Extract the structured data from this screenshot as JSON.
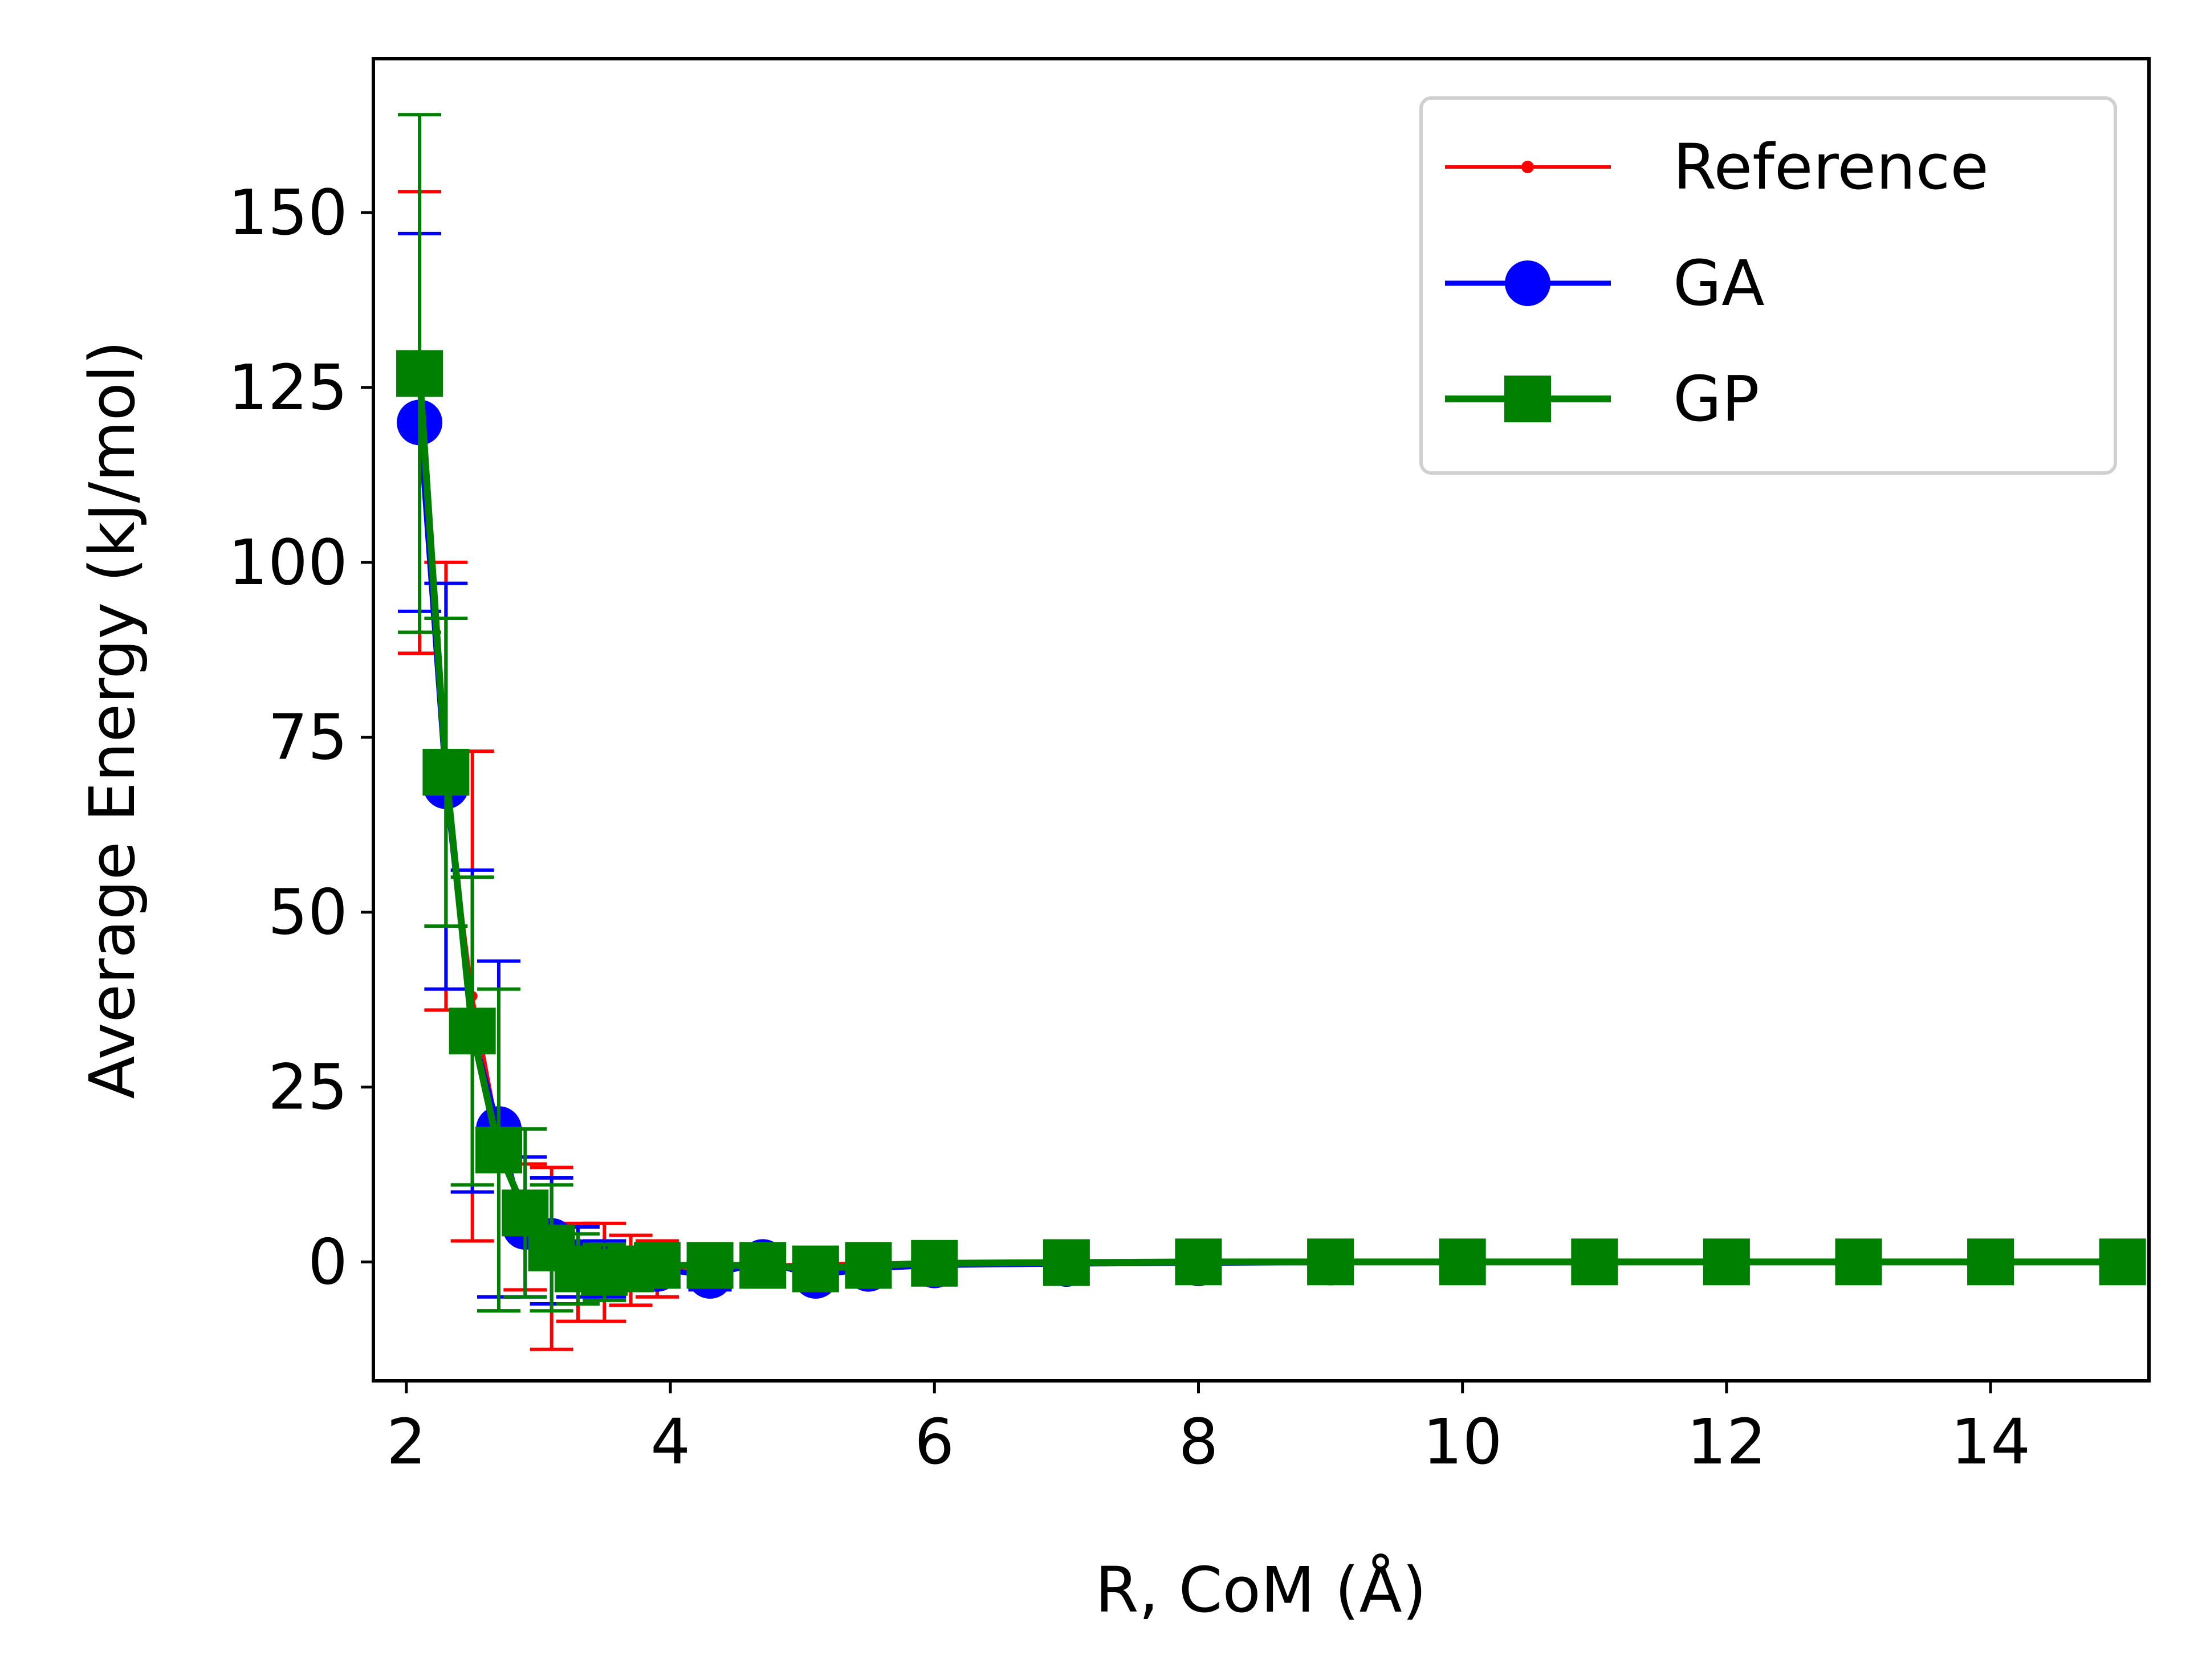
{
  "chart_data": {
    "type": "line",
    "xlabel": "R, CoM (Å)",
    "ylabel": "Average Energy (kJ/mol)",
    "xlim": [
      1.75,
      15.2
    ],
    "ylim": [
      -17,
      172
    ],
    "xticks": [
      2,
      4,
      6,
      8,
      10,
      12,
      14
    ],
    "yticks": [
      0,
      25,
      50,
      75,
      100,
      125,
      150
    ],
    "grid": false,
    "legend_position": "top-right",
    "series": [
      {
        "name": "Reference",
        "color": "#ff0000",
        "marker": "small-dot",
        "x": [
          2.1,
          2.3,
          2.5,
          2.7,
          2.9,
          3.1,
          3.3,
          3.5,
          3.7,
          3.9,
          4.3,
          4.7,
          5.1,
          5.5,
          6.0,
          7.0,
          8.0,
          9.0,
          10.0,
          11.0,
          12.0,
          13.0,
          14.0,
          15.0
        ],
        "y": [
          120,
          68,
          38,
          18,
          5,
          0.5,
          -1.5,
          -1.5,
          -1.2,
          -1.0,
          -0.8,
          -0.5,
          -0.3,
          -0.2,
          -0.1,
          0,
          0,
          0,
          0,
          0,
          0,
          0,
          0,
          0
        ],
        "err": [
          33,
          32,
          35,
          25,
          9,
          13,
          7,
          7,
          5,
          4,
          2,
          2,
          1,
          1,
          1,
          0.5,
          0.5,
          0.5,
          0.5,
          0.5,
          0.5,
          0.5,
          0.5,
          0.5
        ]
      },
      {
        "name": "GA",
        "color": "#0000ff",
        "marker": "circle",
        "x": [
          2.1,
          2.3,
          2.5,
          2.7,
          2.9,
          3.1,
          3.3,
          3.5,
          3.7,
          3.9,
          4.3,
          4.7,
          5.1,
          5.5,
          6.0,
          7.0,
          8.0,
          9.0,
          10.0,
          11.0,
          12.0,
          13.0,
          14.0,
          15.0
        ],
        "y": [
          120,
          68,
          33,
          19,
          5,
          3,
          0,
          -1.0,
          -1.0,
          -1.0,
          -2.0,
          0,
          -2.0,
          -1.0,
          -0.5,
          -0.3,
          -0.2,
          -0.1,
          0,
          0,
          0,
          0,
          0,
          0
        ],
        "err": [
          27,
          29,
          23,
          24,
          10,
          9,
          5,
          4,
          3,
          2,
          2,
          2,
          1,
          1,
          1,
          0.5,
          0.5,
          0.5,
          0.5,
          0.5,
          0.5,
          0.5,
          0.5,
          0.5
        ]
      },
      {
        "name": "GP",
        "color": "#008000",
        "marker": "square",
        "x": [
          2.1,
          2.3,
          2.5,
          2.7,
          2.9,
          3.1,
          3.3,
          3.5,
          3.7,
          3.9,
          4.3,
          4.7,
          5.1,
          5.5,
          6.0,
          7.0,
          8.0,
          9.0,
          10.0,
          11.0,
          12.0,
          13.0,
          14.0,
          15.0
        ],
        "y": [
          127,
          70,
          33,
          16,
          7,
          2,
          -1,
          -1.5,
          -1.0,
          -0.5,
          -0.5,
          -0.5,
          -1.0,
          -0.5,
          -0.2,
          -0.1,
          0,
          0,
          0,
          0,
          0,
          0,
          0,
          0
        ],
        "err": [
          37,
          22,
          22,
          23,
          12,
          9,
          5,
          4,
          3,
          2,
          2,
          2,
          1,
          1,
          1,
          0.5,
          0.5,
          0.5,
          0.5,
          0.5,
          0.5,
          0.5,
          0.5,
          0.5
        ]
      }
    ]
  }
}
